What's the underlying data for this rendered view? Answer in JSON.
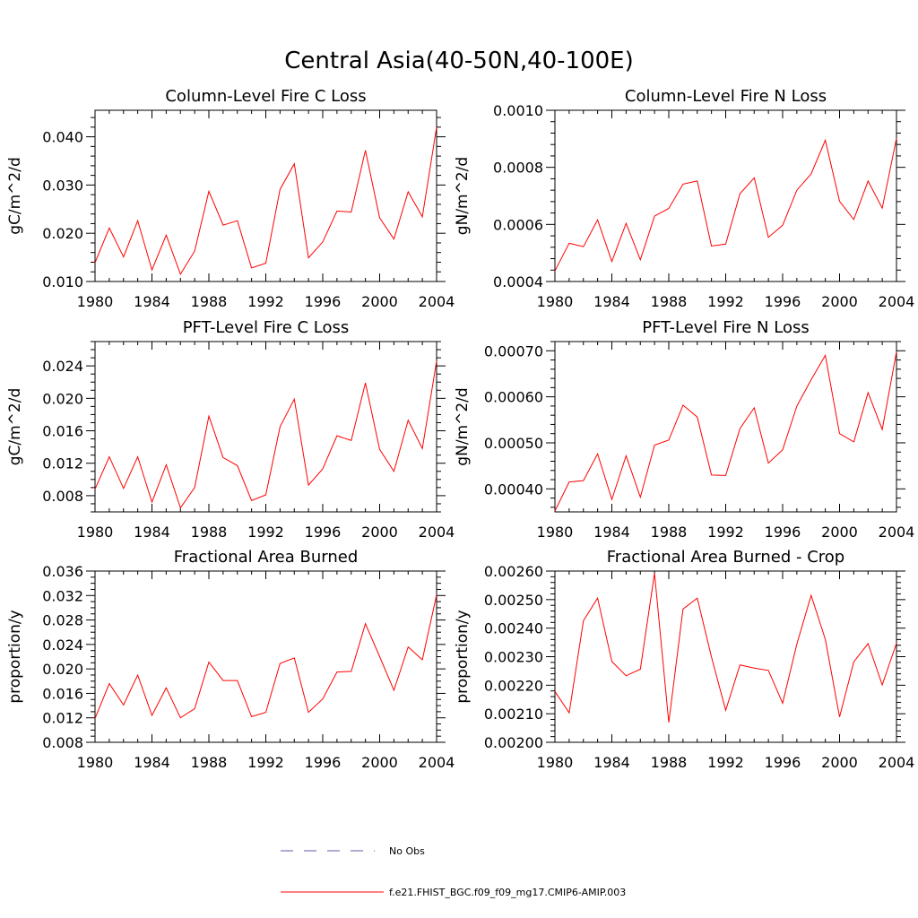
{
  "figure_title": "Central Asia(40-50N,40-100E)",
  "legend": [
    {
      "label": "No Obs",
      "color": "#5a5aa0",
      "style": "dashed"
    },
    {
      "label": "f.e21.FHIST_BGC.f09_f09_mg17.CMIP6-AMIP.003",
      "color": "#ff0000",
      "style": "solid"
    }
  ],
  "chart_data": [
    {
      "type": "line",
      "title": "Column-Level Fire C Loss",
      "xlabel": "",
      "ylabel": "gC/m^2/d",
      "xlim": [
        1980,
        2004
      ],
      "ylim": [
        0.01,
        0.0455
      ],
      "xticks": [
        1980,
        1984,
        1988,
        1992,
        1996,
        2000,
        2004
      ],
      "xtick_labels": [
        "1980",
        "1984",
        "1988",
        "1992",
        "1996",
        "2000",
        "2004"
      ],
      "yticks": [
        0.01,
        0.02,
        0.03,
        0.04
      ],
      "ytick_labels": [
        "0.010",
        "0.020",
        "0.030",
        "0.040"
      ],
      "yminor": 0.002,
      "series": [
        {
          "name": "f.e21.FHIST_BGC.f09_f09_mg17.CMIP6-AMIP.003",
          "x": [
            1980,
            1981,
            1982,
            1983,
            1984,
            1985,
            1986,
            1987,
            1988,
            1989,
            1990,
            1991,
            1992,
            1993,
            1994,
            1995,
            1996,
            1997,
            1998,
            1999,
            2000,
            2001,
            2002,
            2003,
            2004
          ],
          "values": [
            0.0139,
            0.0211,
            0.0151,
            0.0226,
            0.0124,
            0.0196,
            0.0115,
            0.0163,
            0.0287,
            0.0217,
            0.0226,
            0.0128,
            0.0138,
            0.0291,
            0.0344,
            0.0149,
            0.0182,
            0.0246,
            0.0244,
            0.0372,
            0.0232,
            0.0188,
            0.0286,
            0.0234,
            0.042
          ]
        }
      ]
    },
    {
      "type": "line",
      "title": "Column-Level Fire N Loss",
      "xlabel": "",
      "ylabel": "gN/m^2/d",
      "xlim": [
        1980,
        2004
      ],
      "ylim": [
        0.0004,
        0.001
      ],
      "xticks": [
        1980,
        1984,
        1988,
        1992,
        1996,
        2000,
        2004
      ],
      "xtick_labels": [
        "1980",
        "1984",
        "1988",
        "1992",
        "1996",
        "2000",
        "2004"
      ],
      "yticks": [
        0.0004,
        0.0006,
        0.0008,
        0.001
      ],
      "ytick_labels": [
        "0.0004",
        "0.0006",
        "0.0008",
        "0.0010"
      ],
      "yminor": 4e-05,
      "series": [
        {
          "name": "f.e21.FHIST_BGC.f09_f09_mg17.CMIP6-AMIP.003",
          "x": [
            1980,
            1981,
            1982,
            1983,
            1984,
            1985,
            1986,
            1987,
            1988,
            1989,
            1990,
            1991,
            1992,
            1993,
            1994,
            1995,
            1996,
            1997,
            1998,
            1999,
            2000,
            2001,
            2002,
            2003,
            2004
          ],
          "values": [
            0.000437,
            0.000534,
            0.000522,
            0.000616,
            0.00047,
            0.000604,
            0.000476,
            0.000629,
            0.000656,
            0.000741,
            0.000752,
            0.000524,
            0.000531,
            0.000708,
            0.000763,
            0.000555,
            0.000597,
            0.00072,
            0.000777,
            0.000895,
            0.000681,
            0.000617,
            0.000752,
            0.000657,
            0.000902
          ]
        }
      ]
    },
    {
      "type": "line",
      "title": "PFT-Level Fire C Loss",
      "xlabel": "",
      "ylabel": "gC/m^2/d",
      "xlim": [
        1980,
        2004
      ],
      "ylim": [
        0.006,
        0.027
      ],
      "xticks": [
        1980,
        1984,
        1988,
        1992,
        1996,
        2000,
        2004
      ],
      "xtick_labels": [
        "1980",
        "1984",
        "1988",
        "1992",
        "1996",
        "2000",
        "2004"
      ],
      "yticks": [
        0.008,
        0.012,
        0.016,
        0.02,
        0.024
      ],
      "ytick_labels": [
        "0.008",
        "0.012",
        "0.016",
        "0.020",
        "0.024"
      ],
      "yminor": 0.001,
      "series": [
        {
          "name": "f.e21.FHIST_BGC.f09_f09_mg17.CMIP6-AMIP.003",
          "x": [
            1980,
            1981,
            1982,
            1983,
            1984,
            1985,
            1986,
            1987,
            1988,
            1989,
            1990,
            1991,
            1992,
            1993,
            1994,
            1995,
            1996,
            1997,
            1998,
            1999,
            2000,
            2001,
            2002,
            2003,
            2004
          ],
          "values": [
            0.0088,
            0.0128,
            0.0089,
            0.0128,
            0.0072,
            0.0118,
            0.0065,
            0.009,
            0.0178,
            0.0127,
            0.0117,
            0.0074,
            0.0081,
            0.0165,
            0.0199,
            0.0093,
            0.0113,
            0.0154,
            0.0148,
            0.0219,
            0.0137,
            0.011,
            0.0173,
            0.0138,
            0.0246
          ]
        }
      ]
    },
    {
      "type": "line",
      "title": "PFT-Level Fire N Loss",
      "xlabel": "",
      "ylabel": "gN/m^2/d",
      "xlim": [
        1980,
        2004
      ],
      "ylim": [
        0.00035,
        0.00072
      ],
      "xticks": [
        1980,
        1984,
        1988,
        1992,
        1996,
        2000,
        2004
      ],
      "xtick_labels": [
        "1980",
        "1984",
        "1988",
        "1992",
        "1996",
        "2000",
        "2004"
      ],
      "yticks": [
        0.0004,
        0.0005,
        0.0006,
        0.0007
      ],
      "ytick_labels": [
        "0.00040",
        "0.00050",
        "0.00060",
        "0.00070"
      ],
      "yminor": 2e-05,
      "series": [
        {
          "name": "f.e21.FHIST_BGC.f09_f09_mg17.CMIP6-AMIP.003",
          "x": [
            1980,
            1981,
            1982,
            1983,
            1984,
            1985,
            1986,
            1987,
            1988,
            1989,
            1990,
            1991,
            1992,
            1993,
            1994,
            1995,
            1996,
            1997,
            1998,
            1999,
            2000,
            2001,
            2002,
            2003,
            2004
          ],
          "values": [
            0.000352,
            0.000415,
            0.000418,
            0.000476,
            0.000377,
            0.000472,
            0.000382,
            0.000495,
            0.000506,
            0.000582,
            0.000556,
            0.00043,
            0.000429,
            0.000531,
            0.000576,
            0.000456,
            0.000485,
            0.00058,
            0.000637,
            0.00069,
            0.00052,
            0.000502,
            0.000609,
            0.000529,
            0.000698
          ]
        }
      ]
    },
    {
      "type": "line",
      "title": "Fractional Area Burned",
      "xlabel": "",
      "ylabel": "proportion/y",
      "xlim": [
        1980,
        2004
      ],
      "ylim": [
        0.008,
        0.036
      ],
      "xticks": [
        1980,
        1984,
        1988,
        1992,
        1996,
        2000,
        2004
      ],
      "xtick_labels": [
        "1980",
        "1984",
        "1988",
        "1992",
        "1996",
        "2000",
        "2004"
      ],
      "yticks": [
        0.008,
        0.012,
        0.016,
        0.02,
        0.024,
        0.028,
        0.032,
        0.036
      ],
      "ytick_labels": [
        "0.008",
        "0.012",
        "0.016",
        "0.020",
        "0.024",
        "0.028",
        "0.032",
        "0.036"
      ],
      "yminor": 0.001,
      "series": [
        {
          "name": "f.e21.FHIST_BGC.f09_f09_mg17.CMIP6-AMIP.003",
          "x": [
            1980,
            1981,
            1982,
            1983,
            1984,
            1985,
            1986,
            1987,
            1988,
            1989,
            1990,
            1991,
            1992,
            1993,
            1994,
            1995,
            1996,
            1997,
            1998,
            1999,
            2000,
            2001,
            2002,
            2003,
            2004
          ],
          "values": [
            0.0119,
            0.0176,
            0.0141,
            0.019,
            0.0124,
            0.0169,
            0.012,
            0.0135,
            0.0211,
            0.0181,
            0.0181,
            0.0122,
            0.0129,
            0.0209,
            0.0218,
            0.0129,
            0.0151,
            0.0195,
            0.0196,
            0.0274,
            0.022,
            0.0165,
            0.0236,
            0.0215,
            0.0321
          ]
        }
      ]
    },
    {
      "type": "line",
      "title": "Fractional Area Burned - Crop",
      "xlabel": "",
      "ylabel": "proportion/y",
      "xlim": [
        1980,
        2004
      ],
      "ylim": [
        0.002,
        0.0026
      ],
      "xticks": [
        1980,
        1984,
        1988,
        1992,
        1996,
        2000,
        2004
      ],
      "xtick_labels": [
        "1980",
        "1984",
        "1988",
        "1992",
        "1996",
        "2000",
        "2004"
      ],
      "yticks": [
        0.002,
        0.0021,
        0.0022,
        0.0023,
        0.0024,
        0.0025,
        0.0026
      ],
      "ytick_labels": [
        "0.00200",
        "0.00210",
        "0.00220",
        "0.00230",
        "0.00240",
        "0.00250",
        "0.00260"
      ],
      "yminor": 2e-05,
      "series": [
        {
          "name": "f.e21.FHIST_BGC.f09_f09_mg17.CMIP6-AMIP.003",
          "x": [
            1980,
            1981,
            1982,
            1983,
            1984,
            1985,
            1986,
            1987,
            1988,
            1989,
            1990,
            1991,
            1992,
            1993,
            1994,
            1995,
            1996,
            1997,
            1998,
            1999,
            2000,
            2001,
            2002,
            2003,
            2004
          ],
          "values": [
            0.002178,
            0.002103,
            0.002426,
            0.002505,
            0.002283,
            0.002233,
            0.002256,
            0.002592,
            0.002069,
            0.002467,
            0.002505,
            0.002299,
            0.002112,
            0.002271,
            0.00226,
            0.002252,
            0.002137,
            0.002345,
            0.002515,
            0.002361,
            0.002089,
            0.002282,
            0.002346,
            0.002201,
            0.002347
          ]
        }
      ]
    }
  ]
}
